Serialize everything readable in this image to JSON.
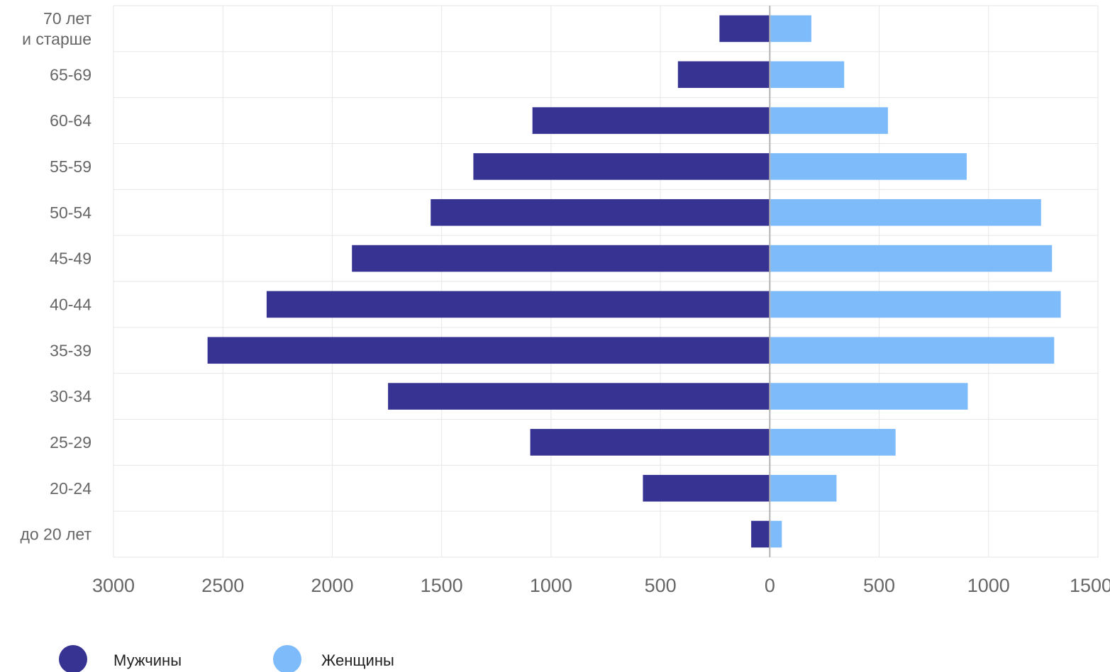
{
  "chart_data": {
    "type": "bar",
    "orientation": "horizontal-diverging",
    "categories": [
      [
        "70 лет",
        "и старше"
      ],
      [
        "65-69"
      ],
      [
        "60-64"
      ],
      [
        "55-59"
      ],
      [
        "50-54"
      ],
      [
        "45-49"
      ],
      [
        "40-44"
      ],
      [
        "35-39"
      ],
      [
        "30-34"
      ],
      [
        "25-29"
      ],
      [
        "20-24"
      ],
      [
        "до 20 лет"
      ]
    ],
    "series": [
      {
        "name": "Мужчины",
        "side": "left",
        "color": "#363393",
        "values": [
          230,
          420,
          1085,
          1355,
          1550,
          1910,
          2300,
          2570,
          1745,
          1095,
          580,
          85
        ]
      },
      {
        "name": "Женщины",
        "side": "right",
        "color": "#7ebbfa",
        "values": [
          190,
          340,
          540,
          900,
          1240,
          1290,
          1330,
          1300,
          905,
          575,
          305,
          55
        ]
      }
    ],
    "xlim": [
      -3000,
      1500
    ],
    "tick_values": [
      -3000,
      -2500,
      -2000,
      -1500,
      -1000,
      -500,
      0,
      500,
      1000,
      1500
    ],
    "tick_labels": [
      "3000",
      "2500",
      "2000",
      "1500",
      "1000",
      "500",
      "0",
      "500",
      "1000",
      "1500"
    ],
    "grid": true,
    "legend_position": "bottom-left",
    "colors": {
      "grid": "#e6e6e6",
      "zero_line": "#b3b3b3",
      "text": "#666666"
    }
  }
}
